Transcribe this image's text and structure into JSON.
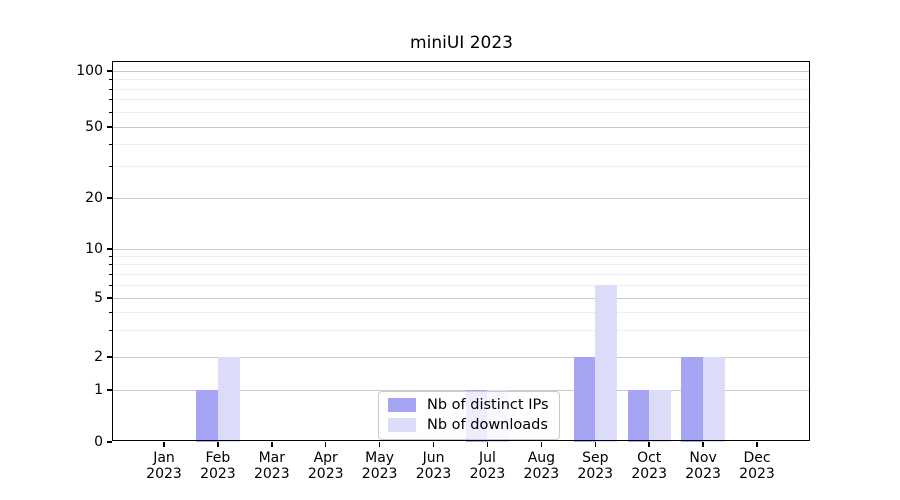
{
  "chart_data": {
    "type": "bar",
    "title": "miniUI 2023",
    "x_categories": [
      "Jan",
      "Feb",
      "Mar",
      "Apr",
      "May",
      "Jun",
      "Jul",
      "Aug",
      "Sep",
      "Oct",
      "Nov",
      "Dec"
    ],
    "x_year": "2023",
    "series": [
      {
        "name": "Nb of distinct IPs",
        "color": "#a5a5f4",
        "values": [
          0,
          1,
          0,
          0,
          0,
          0,
          1,
          0,
          2,
          1,
          2,
          0
        ]
      },
      {
        "name": "Nb of downloads",
        "color": "#dcdcf9",
        "values": [
          0,
          2,
          0,
          0,
          0,
          0,
          1,
          0,
          6,
          1,
          2,
          0
        ]
      }
    ],
    "y_axis": {
      "scale": "symlog",
      "major_ticks": [
        0,
        1,
        2,
        5,
        10,
        20,
        50,
        100
      ],
      "minor_gridlines": [
        3,
        4,
        6,
        7,
        8,
        9,
        30,
        40,
        60,
        70,
        80,
        90
      ],
      "range": [
        0,
        130
      ]
    },
    "legend": {
      "position": "lower center",
      "entries": [
        "Nb of distinct IPs",
        "Nb of downloads"
      ]
    },
    "grid": "both",
    "colors": {
      "major_grid": "#c9c9c9",
      "minor_grid": "#eeeeee",
      "axis": "#000000",
      "background": "#ffffff"
    }
  }
}
